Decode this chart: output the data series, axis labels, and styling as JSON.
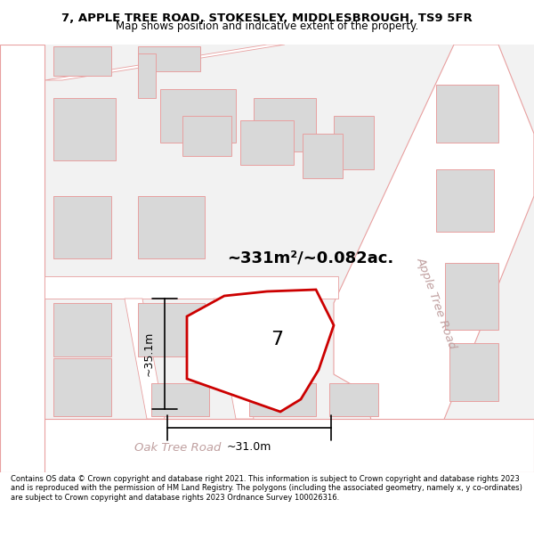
{
  "title_line1": "7, APPLE TREE ROAD, STOKESLEY, MIDDLESBROUGH, TS9 5FR",
  "title_line2": "Map shows position and indicative extent of the property.",
  "footer_text": "Contains OS data © Crown copyright and database right 2021. This information is subject to Crown copyright and database rights 2023 and is reproduced with the permission of HM Land Registry. The polygons (including the associated geometry, namely x, y co-ordinates) are subject to Crown copyright and database rights 2023 Ordnance Survey 100026316.",
  "area_label": "~331m²/~0.082ac.",
  "number_label": "7",
  "dim_width": "~31.0m",
  "dim_height": "~35.1m",
  "road_label_bottom": "Oak Tree Road",
  "road_label_right": "Apple Tree Road",
  "map_bg": "#f5f5f5",
  "plot_fill": "#ffffff",
  "plot_stroke": "#cc0000",
  "road_stroke": "#e8a0a0",
  "building_fill": "#d8d8d8",
  "building_stroke": "#e8a0a0"
}
